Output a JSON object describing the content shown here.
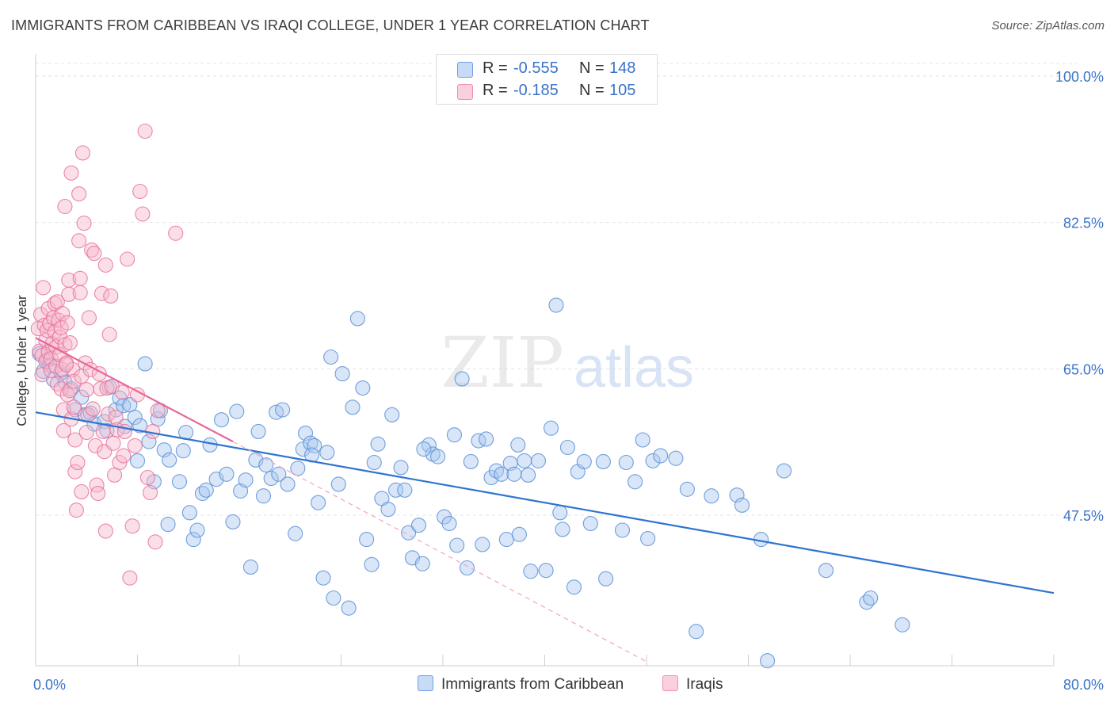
{
  "header": {
    "title": "IMMIGRANTS FROM CARIBBEAN VS IRAQI COLLEGE, UNDER 1 YEAR CORRELATION CHART",
    "source": "Source: ZipAtlas.com"
  },
  "watermark": {
    "zip": "ZIP",
    "atlas": "atlas"
  },
  "legend_top": {
    "rows": [
      {
        "r_label": "R =",
        "r_value": "-0.555",
        "n_label": "N =",
        "n_value": "148"
      },
      {
        "r_label": "R =",
        "r_value": "-0.185",
        "n_label": "N =",
        "n_value": "105"
      }
    ]
  },
  "colors": {
    "blue_fill": "#a9c8f0",
    "blue_stroke": "#5b8fd6",
    "blue_line": "#2e74d0",
    "pink_fill": "#f7b8cc",
    "pink_stroke": "#e8739a",
    "pink_line": "#e8689a",
    "axis_text": "#3a72c9",
    "grid": "#e4e4e4"
  },
  "chart_data": {
    "type": "scatter",
    "title": "IMMIGRANTS FROM CARIBBEAN VS IRAQI COLLEGE, UNDER 1 YEAR CORRELATION CHART",
    "xlabel": "",
    "ylabel": "College, Under 1 year",
    "xlim": [
      0,
      80
    ],
    "ylim": [
      29.5,
      101.5
    ],
    "x_tick_labels": [
      "0.0%",
      "80.0%"
    ],
    "y_ticks": [
      47.5,
      65.0,
      82.5,
      100.0
    ],
    "y_tick_labels": [
      "47.5%",
      "65.0%",
      "82.5%",
      "100.0%"
    ],
    "grid": true,
    "legend_position": "top-center",
    "series": [
      {
        "name": "Immigrants from Caribbean",
        "R": -0.555,
        "N": 148,
        "color": "#a9c8f0",
        "trend": {
          "x": [
            0,
            80
          ],
          "y": [
            59.8,
            38.2
          ],
          "style": "solid"
        },
        "points": [
          [
            0.3,
            66.8
          ],
          [
            0.6,
            64.7
          ],
          [
            0.9,
            66.1
          ],
          [
            1.1,
            65.4
          ],
          [
            1.4,
            63.7
          ],
          [
            2.0,
            64.5
          ],
          [
            2.3,
            63.4
          ],
          [
            2.8,
            62.6
          ],
          [
            3.1,
            60.1
          ],
          [
            3.6,
            61.6
          ],
          [
            3.9,
            59.5
          ],
          [
            4.3,
            59.7
          ],
          [
            4.6,
            58.4
          ],
          [
            5.4,
            58.7
          ],
          [
            5.6,
            57.6
          ],
          [
            5.8,
            62.8
          ],
          [
            6.3,
            60.1
          ],
          [
            6.6,
            61.5
          ],
          [
            6.9,
            60.6
          ],
          [
            7.0,
            58.1
          ],
          [
            7.4,
            60.7
          ],
          [
            7.8,
            59.2
          ],
          [
            8.0,
            54.0
          ],
          [
            8.2,
            58.2
          ],
          [
            8.6,
            65.6
          ],
          [
            8.9,
            56.3
          ],
          [
            9.3,
            51.5
          ],
          [
            9.6,
            59.0
          ],
          [
            9.8,
            60.0
          ],
          [
            10.1,
            55.3
          ],
          [
            10.4,
            46.4
          ],
          [
            10.5,
            54.1
          ],
          [
            11.3,
            51.5
          ],
          [
            11.6,
            55.2
          ],
          [
            11.8,
            57.4
          ],
          [
            12.1,
            47.8
          ],
          [
            12.4,
            44.6
          ],
          [
            12.7,
            45.7
          ],
          [
            13.1,
            50.1
          ],
          [
            13.4,
            50.5
          ],
          [
            13.7,
            55.9
          ],
          [
            14.2,
            51.8
          ],
          [
            14.6,
            58.9
          ],
          [
            15.0,
            52.4
          ],
          [
            15.5,
            46.7
          ],
          [
            15.8,
            59.9
          ],
          [
            16.1,
            50.4
          ],
          [
            16.5,
            51.7
          ],
          [
            16.9,
            41.3
          ],
          [
            17.3,
            54.1
          ],
          [
            17.5,
            57.5
          ],
          [
            17.9,
            49.8
          ],
          [
            18.1,
            53.5
          ],
          [
            18.5,
            51.9
          ],
          [
            18.9,
            59.8
          ],
          [
            19.1,
            52.4
          ],
          [
            19.4,
            60.1
          ],
          [
            19.8,
            51.2
          ],
          [
            20.4,
            45.3
          ],
          [
            20.6,
            53.1
          ],
          [
            21.0,
            55.4
          ],
          [
            21.2,
            57.3
          ],
          [
            21.6,
            56.1
          ],
          [
            21.9,
            55.8
          ],
          [
            22.2,
            49.0
          ],
          [
            22.6,
            40.0
          ],
          [
            22.9,
            55.0
          ],
          [
            23.2,
            66.4
          ],
          [
            23.4,
            37.6
          ],
          [
            23.8,
            51.2
          ],
          [
            24.1,
            64.4
          ],
          [
            24.6,
            36.4
          ],
          [
            24.9,
            60.4
          ],
          [
            25.3,
            71.0
          ],
          [
            25.7,
            62.7
          ],
          [
            26.0,
            44.6
          ],
          [
            26.4,
            41.6
          ],
          [
            26.6,
            53.8
          ],
          [
            26.9,
            56.0
          ],
          [
            27.2,
            49.5
          ],
          [
            28.0,
            59.5
          ],
          [
            28.3,
            50.5
          ],
          [
            28.7,
            53.2
          ],
          [
            29.0,
            50.5
          ],
          [
            29.3,
            45.4
          ],
          [
            29.6,
            42.4
          ],
          [
            30.1,
            46.3
          ],
          [
            30.4,
            41.7
          ],
          [
            30.9,
            55.9
          ],
          [
            31.2,
            54.8
          ],
          [
            31.6,
            54.5
          ],
          [
            32.1,
            47.3
          ],
          [
            32.5,
            46.5
          ],
          [
            32.9,
            57.1
          ],
          [
            33.1,
            43.9
          ],
          [
            33.5,
            63.8
          ],
          [
            33.9,
            41.2
          ],
          [
            34.2,
            53.9
          ],
          [
            34.8,
            56.4
          ],
          [
            35.1,
            44.0
          ],
          [
            35.4,
            56.6
          ],
          [
            35.8,
            52.0
          ],
          [
            36.2,
            52.8
          ],
          [
            36.6,
            52.4
          ],
          [
            37.0,
            44.6
          ],
          [
            37.3,
            53.7
          ],
          [
            37.6,
            52.4
          ],
          [
            38.0,
            45.2
          ],
          [
            38.4,
            54.0
          ],
          [
            38.7,
            52.3
          ],
          [
            38.9,
            40.8
          ],
          [
            39.5,
            54.0
          ],
          [
            40.1,
            40.9
          ],
          [
            40.5,
            57.9
          ],
          [
            41.2,
            47.8
          ],
          [
            41.4,
            45.8
          ],
          [
            41.8,
            55.6
          ],
          [
            42.3,
            38.9
          ],
          [
            42.6,
            52.7
          ],
          [
            43.1,
            53.9
          ],
          [
            43.6,
            46.5
          ],
          [
            44.6,
            53.9
          ],
          [
            44.8,
            39.9
          ],
          [
            46.1,
            45.7
          ],
          [
            46.4,
            53.8
          ],
          [
            47.1,
            51.5
          ],
          [
            47.7,
            56.5
          ],
          [
            48.1,
            44.7
          ],
          [
            48.5,
            54.0
          ],
          [
            49.1,
            54.6
          ],
          [
            50.3,
            54.3
          ],
          [
            51.2,
            50.6
          ],
          [
            51.9,
            33.6
          ],
          [
            53.1,
            49.8
          ],
          [
            55.1,
            49.9
          ],
          [
            55.5,
            48.7
          ],
          [
            57.0,
            44.6
          ],
          [
            57.5,
            30.1
          ],
          [
            58.8,
            52.8
          ],
          [
            62.1,
            40.9
          ],
          [
            65.3,
            37.1
          ],
          [
            65.6,
            37.6
          ],
          [
            68.1,
            34.4
          ],
          [
            40.9,
            72.6
          ],
          [
            21.7,
            54.7
          ],
          [
            27.7,
            48.2
          ],
          [
            30.5,
            55.4
          ],
          [
            37.9,
            55.9
          ]
        ]
      },
      {
        "name": "Iraqis",
        "R": -0.185,
        "N": 105,
        "color": "#f7b8cc",
        "trend": {
          "x": [
            0,
            15.5
          ],
          "y": [
            68.7,
            56.3
          ],
          "style": "solid"
        },
        "trend_extension": {
          "x": [
            15.5,
            48.0
          ],
          "y": [
            56.3,
            30.0
          ],
          "style": "dashed"
        },
        "points": [
          [
            0.2,
            69.8
          ],
          [
            0.3,
            67.1
          ],
          [
            0.4,
            71.5
          ],
          [
            0.5,
            64.3
          ],
          [
            0.5,
            66.6
          ],
          [
            0.6,
            74.7
          ],
          [
            0.7,
            70.2
          ],
          [
            0.8,
            65.9
          ],
          [
            0.8,
            68.4
          ],
          [
            0.9,
            69.6
          ],
          [
            1.0,
            67.0
          ],
          [
            1.0,
            72.2
          ],
          [
            1.1,
            70.4
          ],
          [
            1.2,
            66.2
          ],
          [
            1.2,
            64.8
          ],
          [
            1.3,
            68.0
          ],
          [
            1.4,
            71.1
          ],
          [
            1.5,
            69.4
          ],
          [
            1.5,
            72.8
          ],
          [
            1.6,
            65.3
          ],
          [
            1.6,
            67.6
          ],
          [
            1.7,
            63.2
          ],
          [
            1.7,
            73.0
          ],
          [
            1.8,
            70.8
          ],
          [
            1.9,
            68.8
          ],
          [
            1.9,
            66.7
          ],
          [
            2.0,
            62.6
          ],
          [
            2.0,
            69.9
          ],
          [
            2.1,
            64.9
          ],
          [
            2.1,
            71.6
          ],
          [
            2.2,
            60.1
          ],
          [
            2.2,
            57.6
          ],
          [
            2.3,
            67.9
          ],
          [
            2.3,
            84.4
          ],
          [
            2.4,
            65.7
          ],
          [
            2.5,
            61.9
          ],
          [
            2.5,
            70.5
          ],
          [
            2.6,
            75.6
          ],
          [
            2.6,
            73.9
          ],
          [
            2.7,
            68.1
          ],
          [
            2.7,
            62.4
          ],
          [
            2.8,
            59.0
          ],
          [
            2.8,
            88.4
          ],
          [
            2.9,
            64.9
          ],
          [
            3.0,
            60.4
          ],
          [
            3.0,
            63.5
          ],
          [
            3.1,
            52.7
          ],
          [
            3.1,
            56.5
          ],
          [
            3.2,
            48.1
          ],
          [
            3.3,
            53.8
          ],
          [
            3.4,
            80.3
          ],
          [
            3.4,
            85.9
          ],
          [
            3.5,
            74.1
          ],
          [
            3.5,
            75.8
          ],
          [
            3.6,
            50.3
          ],
          [
            3.6,
            64.1
          ],
          [
            3.7,
            90.8
          ],
          [
            3.8,
            82.4
          ],
          [
            3.9,
            65.7
          ],
          [
            4.0,
            57.4
          ],
          [
            4.1,
            59.5
          ],
          [
            4.2,
            71.1
          ],
          [
            4.3,
            64.9
          ],
          [
            4.4,
            79.2
          ],
          [
            4.5,
            60.2
          ],
          [
            4.6,
            78.8
          ],
          [
            4.7,
            55.8
          ],
          [
            4.8,
            51.1
          ],
          [
            4.9,
            50.1
          ],
          [
            5.0,
            64.4
          ],
          [
            5.1,
            62.6
          ],
          [
            5.2,
            74.0
          ],
          [
            5.3,
            57.5
          ],
          [
            5.4,
            55.1
          ],
          [
            5.5,
            77.4
          ],
          [
            5.6,
            62.7
          ],
          [
            5.7,
            59.6
          ],
          [
            5.8,
            69.1
          ],
          [
            5.9,
            73.7
          ],
          [
            6.0,
            62.9
          ],
          [
            6.1,
            56.1
          ],
          [
            6.2,
            52.3
          ],
          [
            6.3,
            59.2
          ],
          [
            6.4,
            57.7
          ],
          [
            6.6,
            53.8
          ],
          [
            6.8,
            62.2
          ],
          [
            7.0,
            57.5
          ],
          [
            7.2,
            78.1
          ],
          [
            7.4,
            40.0
          ],
          [
            7.6,
            46.2
          ],
          [
            7.8,
            55.8
          ],
          [
            8.0,
            61.9
          ],
          [
            8.2,
            86.2
          ],
          [
            8.4,
            83.5
          ],
          [
            8.6,
            93.4
          ],
          [
            8.8,
            52.0
          ],
          [
            9.0,
            50.2
          ],
          [
            9.2,
            57.5
          ],
          [
            9.4,
            44.3
          ],
          [
            9.6,
            60.0
          ],
          [
            11.0,
            81.2
          ],
          [
            5.5,
            45.6
          ],
          [
            6.9,
            54.6
          ],
          [
            4.0,
            62.5
          ],
          [
            2.4,
            65.5
          ]
        ]
      }
    ]
  },
  "bottom_legend": [
    {
      "label": "Immigrants from Caribbean"
    },
    {
      "label": "Iraqis"
    }
  ]
}
